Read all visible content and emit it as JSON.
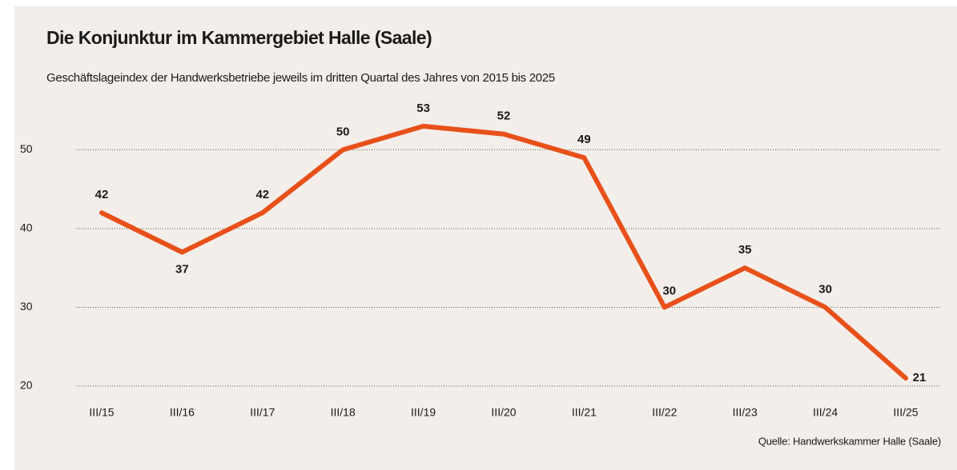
{
  "chart_data": {
    "type": "line",
    "title": "Die Konjunktur im Kammergebiet Halle (Saale)",
    "subtitle": "Geschäftslageindex der Handwerksbetriebe jeweils im dritten Quartal des Jahres von 2015 bis 2025",
    "source": "Quelle: Handwerkskammer Halle (Saale)",
    "categories": [
      "III/15",
      "III/16",
      "III/17",
      "III/18",
      "III/19",
      "III/20",
      "III/21",
      "III/22",
      "III/23",
      "III/24",
      "III/25"
    ],
    "values": [
      42,
      37,
      42,
      50,
      53,
      52,
      49,
      30,
      35,
      30,
      21
    ],
    "color": "#e8501a",
    "ylim": [
      20,
      54
    ],
    "yticks": [
      20,
      30,
      40,
      50
    ],
    "grid": true
  }
}
